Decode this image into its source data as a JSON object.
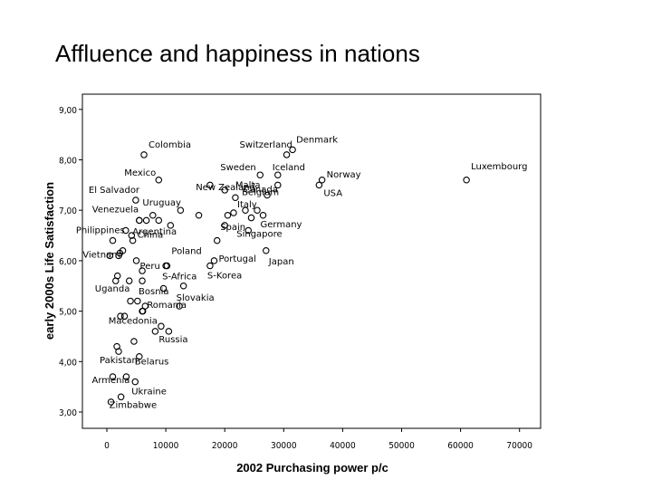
{
  "slide": {
    "title": "Affluence and happiness in nations"
  },
  "chart_data": {
    "type": "scatter",
    "title": "",
    "xlabel": "2002 Purchasing power p/c",
    "ylabel": "early 2000s Life Satisfaction",
    "xlim": [
      -3000,
      73000
    ],
    "ylim": [
      3.0,
      9.3
    ],
    "xticks": [
      "0",
      "10000",
      "20000",
      "30000",
      "40000",
      "50000",
      "60000",
      "70000"
    ],
    "yticks": [
      "3,00",
      "4,00",
      "5,00",
      "6,00",
      "7,00",
      "8,00",
      "9,00"
    ],
    "grid": false,
    "labeled_points": [
      {
        "label": "Colombia",
        "x": 6300,
        "y": 8.1
      },
      {
        "label": "Switzerland",
        "x": 30500,
        "y": 8.1
      },
      {
        "label": "Denmark",
        "x": 31500,
        "y": 8.2
      },
      {
        "label": "Mexico",
        "x": 8800,
        "y": 7.6
      },
      {
        "label": "Malta",
        "x": 17500,
        "y": 7.5
      },
      {
        "label": "Sweden",
        "x": 26000,
        "y": 7.7
      },
      {
        "label": "Iceland",
        "x": 29000,
        "y": 7.7
      },
      {
        "label": "Norway",
        "x": 36500,
        "y": 7.6
      },
      {
        "label": "Luxembourg",
        "x": 61000,
        "y": 7.6
      },
      {
        "label": "El Salvador",
        "x": 4900,
        "y": 7.2
      },
      {
        "label": "New Zealand",
        "x": 20000,
        "y": 7.4
      },
      {
        "label": "Belgium",
        "x": 27200,
        "y": 7.3
      },
      {
        "label": "Canada",
        "x": 29000,
        "y": 7.5
      },
      {
        "label": "USA",
        "x": 36000,
        "y": 7.5
      },
      {
        "label": "Venezuela",
        "x": 5500,
        "y": 6.8
      },
      {
        "label": "Uruguay",
        "x": 12500,
        "y": 7.0
      },
      {
        "label": "Italy",
        "x": 25500,
        "y": 7.0
      },
      {
        "label": "Germany",
        "x": 26500,
        "y": 6.9
      },
      {
        "label": "Philippines",
        "x": 3200,
        "y": 6.6
      },
      {
        "label": "China",
        "x": 4400,
        "y": 6.4
      },
      {
        "label": "Argentina",
        "x": 10800,
        "y": 6.7
      },
      {
        "label": "Spain",
        "x": 20000,
        "y": 6.7
      },
      {
        "label": "Singapore",
        "x": 24000,
        "y": 6.6
      },
      {
        "label": "Poland",
        "x": 10200,
        "y": 5.9
      },
      {
        "label": "Portugal",
        "x": 18200,
        "y": 6.0
      },
      {
        "label": "Japan",
        "x": 27000,
        "y": 6.2
      },
      {
        "label": "Vietnam",
        "x": 500,
        "y": 6.1
      },
      {
        "label": "Peru",
        "x": 5000,
        "y": 6.0
      },
      {
        "label": "S-Africa",
        "x": 10000,
        "y": 5.9
      },
      {
        "label": "S-Korea",
        "x": 17500,
        "y": 5.9
      },
      {
        "label": "Uganda",
        "x": 1500,
        "y": 5.6
      },
      {
        "label": "Bosnia",
        "x": 6000,
        "y": 5.6
      },
      {
        "label": "Slovakia",
        "x": 13000,
        "y": 5.5
      },
      {
        "label": "Romania",
        "x": 6500,
        "y": 5.1
      },
      {
        "label": "Macedonia",
        "x": 6100,
        "y": 5.0
      },
      {
        "label": "Russia",
        "x": 8200,
        "y": 4.6
      },
      {
        "label": "Pakistan",
        "x": 2000,
        "y": 4.2
      },
      {
        "label": "Belarus",
        "x": 5500,
        "y": 4.1
      },
      {
        "label": "Armenia",
        "x": 1000,
        "y": 3.7
      },
      {
        "label": "Ukraine",
        "x": 4800,
        "y": 3.6
      },
      {
        "label": "Zimbabwe",
        "x": 2400,
        "y": 3.3
      }
    ],
    "unlabeled_points": [
      {
        "x": 2000,
        "y": 6.1
      },
      {
        "x": 1000,
        "y": 6.4
      },
      {
        "x": 2700,
        "y": 6.2
      },
      {
        "x": 4200,
        "y": 6.5
      },
      {
        "x": 5500,
        "y": 6.8
      },
      {
        "x": 6700,
        "y": 6.8
      },
      {
        "x": 7800,
        "y": 6.9
      },
      {
        "x": 8800,
        "y": 6.8
      },
      {
        "x": 2200,
        "y": 6.15
      },
      {
        "x": 1800,
        "y": 5.7
      },
      {
        "x": 3800,
        "y": 5.6
      },
      {
        "x": 6000,
        "y": 5.8
      },
      {
        "x": 4000,
        "y": 5.2
      },
      {
        "x": 5200,
        "y": 5.2
      },
      {
        "x": 6000,
        "y": 5.0
      },
      {
        "x": 9600,
        "y": 5.45
      },
      {
        "x": 12300,
        "y": 5.1
      },
      {
        "x": 2300,
        "y": 4.9
      },
      {
        "x": 3000,
        "y": 4.9
      },
      {
        "x": 9200,
        "y": 4.7
      },
      {
        "x": 10500,
        "y": 4.6
      },
      {
        "x": 1700,
        "y": 4.3
      },
      {
        "x": 4600,
        "y": 4.4
      },
      {
        "x": 3300,
        "y": 3.7
      },
      {
        "x": 700,
        "y": 3.2
      },
      {
        "x": 20500,
        "y": 6.9
      },
      {
        "x": 21500,
        "y": 6.95
      },
      {
        "x": 23500,
        "y": 7.0
      },
      {
        "x": 18700,
        "y": 6.4
      },
      {
        "x": 15600,
        "y": 6.9
      },
      {
        "x": 21800,
        "y": 7.25
      },
      {
        "x": 24500,
        "y": 6.85
      }
    ]
  }
}
